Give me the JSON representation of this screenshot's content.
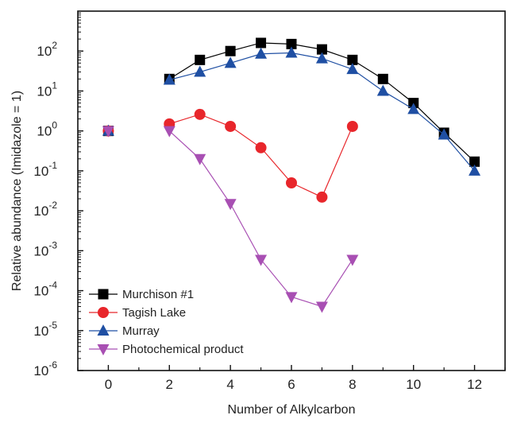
{
  "chart_data": {
    "type": "line",
    "title": "",
    "xlabel": "Number of Alkylcarbon",
    "ylabel": "Relative abundance (Imidazole = 1)",
    "xlim": [
      -1,
      13
    ],
    "ylim": [
      1e-06,
      1000
    ],
    "y_scale": "log",
    "x_ticks": [
      0,
      2,
      4,
      6,
      8,
      10,
      12
    ],
    "y_ticks": [
      {
        "value": 1e-06,
        "mant": "10",
        "exp": "-6"
      },
      {
        "value": 1e-05,
        "mant": "10",
        "exp": "-5"
      },
      {
        "value": 0.0001,
        "mant": "10",
        "exp": "-4"
      },
      {
        "value": 0.001,
        "mant": "10",
        "exp": "-3"
      },
      {
        "value": 0.01,
        "mant": "10",
        "exp": "-2"
      },
      {
        "value": 0.1,
        "mant": "10",
        "exp": "-1"
      },
      {
        "value": 1,
        "mant": "10",
        "exp": "0"
      },
      {
        "value": 10,
        "mant": "10",
        "exp": "1"
      },
      {
        "value": 100,
        "mant": "10",
        "exp": "2"
      }
    ],
    "grid": false,
    "legend_position": "bottom-left",
    "series": [
      {
        "name": "Murchison #1",
        "color": "#000000",
        "marker": "square",
        "points": [
          [
            0,
            1
          ],
          [
            2,
            20
          ],
          [
            3,
            60
          ],
          [
            4,
            100
          ],
          [
            5,
            160
          ],
          [
            6,
            150
          ],
          [
            7,
            110
          ],
          [
            8,
            60
          ],
          [
            9,
            20
          ],
          [
            10,
            5
          ],
          [
            11,
            0.9
          ],
          [
            12,
            0.17
          ]
        ]
      },
      {
        "name": "Tagish Lake",
        "color": "#e8262b",
        "marker": "circle",
        "points": [
          [
            0,
            1
          ],
          [
            2,
            1.5
          ],
          [
            3,
            2.6
          ],
          [
            4,
            1.3
          ],
          [
            5,
            0.38
          ],
          [
            6,
            0.05
          ],
          [
            7,
            0.022
          ],
          [
            8,
            1.3
          ]
        ]
      },
      {
        "name": "Murray",
        "color": "#1f4fa3",
        "marker": "triangle-up",
        "points": [
          [
            0,
            1
          ],
          [
            2,
            19
          ],
          [
            3,
            30
          ],
          [
            4,
            50
          ],
          [
            5,
            85
          ],
          [
            6,
            90
          ],
          [
            7,
            65
          ],
          [
            8,
            35
          ],
          [
            9,
            10
          ],
          [
            10,
            3.5
          ],
          [
            11,
            0.8
          ],
          [
            12,
            0.1
          ]
        ]
      },
      {
        "name": "Photochemical product",
        "color": "#a84fb3",
        "marker": "triangle-down",
        "points": [
          [
            0,
            1
          ],
          [
            2,
            1
          ],
          [
            3,
            0.2
          ],
          [
            4,
            0.015
          ],
          [
            5,
            0.0006
          ],
          [
            6,
            7e-05
          ],
          [
            7,
            4e-05
          ],
          [
            8,
            0.0006
          ]
        ]
      }
    ]
  }
}
